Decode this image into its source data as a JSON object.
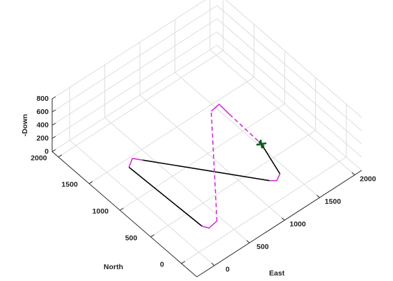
{
  "chart_data": {
    "type": "line3d",
    "xlabel": "East",
    "ylabel": "North",
    "zlabel": "-Down",
    "xlim": [
      -250,
      2100
    ],
    "ylim": [
      -250,
      2100
    ],
    "zlim": [
      0,
      800
    ],
    "xticks": [
      0,
      500,
      1000,
      1500,
      2000
    ],
    "yticks": [
      0,
      500,
      1000,
      1500,
      2000
    ],
    "zticks": [
      0,
      200,
      400,
      600,
      800
    ],
    "grid": true,
    "series": [
      {
        "color": "#000000",
        "dash": false,
        "x": [
          1530,
          1400,
          null,
          1250,
          410,
          null,
          230,
          270
        ],
        "y": [
          730,
          280,
          null,
          280,
          1380,
          null,
          1400,
          260
        ],
        "z": [
          0,
          0,
          null,
          0,
          0,
          null,
          0,
          0
        ]
      },
      {
        "color": "#d62bd6",
        "dash": false,
        "x": [
          1400,
          1310,
          1250,
          null,
          410,
          340,
          230,
          null,
          270,
          310,
          440,
          null,
          1430,
          1560,
          1550
        ],
        "y": [
          280,
          230,
          280,
          null,
          1380,
          1470,
          1400,
          null,
          260,
          190,
          210,
          null,
          1430,
          1450,
          1270
        ],
        "z": [
          0,
          0,
          0,
          null,
          0,
          0,
          0,
          null,
          0,
          0,
          0,
          null,
          0,
          0,
          0
        ]
      },
      {
        "color": "#d62bd6",
        "dash": true,
        "x": [
          440,
          1430,
          null,
          1550,
          1530
        ],
        "y": [
          210,
          1430,
          null,
          1270,
          730
        ],
        "z": [
          0,
          0,
          null,
          0,
          0
        ]
      }
    ],
    "aircraft": {
      "x": 1530,
      "y": 730,
      "z": 0,
      "color": "#0b5d1e"
    }
  }
}
